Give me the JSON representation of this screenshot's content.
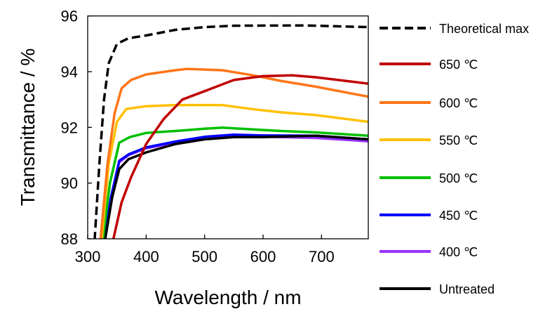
{
  "chart_data": {
    "type": "line",
    "title": "",
    "xlabel": "Wavelength / nm",
    "ylabel": "Transmittance / %",
    "xlim": [
      300,
      780
    ],
    "ylim": [
      88,
      96
    ],
    "xticks": [
      300,
      400,
      500,
      600,
      700
    ],
    "yticks": [
      88,
      90,
      92,
      94,
      96
    ],
    "grid": false,
    "legend_position": "right",
    "series": [
      {
        "name": "Theoretical max",
        "color": "#000000",
        "dashed": true,
        "x": [
          312,
          320,
          328,
          336,
          350,
          370,
          400,
          450,
          500,
          550,
          670,
          780
        ],
        "y": [
          88,
          90.7,
          93.0,
          94.3,
          95.0,
          95.2,
          95.3,
          95.5,
          95.6,
          95.65,
          95.66,
          95.6
        ]
      },
      {
        "name": "650 ℃",
        "color": "#c00000",
        "x": [
          344,
          358,
          374,
          400,
          430,
          462,
          500,
          550,
          600,
          650,
          690,
          780
        ],
        "y": [
          88,
          89.3,
          90.2,
          91.4,
          92.3,
          93.0,
          93.3,
          93.7,
          93.84,
          93.87,
          93.8,
          93.57
        ]
      },
      {
        "name": "600 ℃",
        "color": "#ff7518",
        "x": [
          322,
          334,
          346,
          358,
          374,
          400,
          450,
          470,
          530,
          580,
          630,
          690,
          780
        ],
        "y": [
          88,
          90.7,
          92.5,
          93.4,
          93.7,
          93.9,
          94.05,
          94.1,
          94.05,
          93.88,
          93.67,
          93.46,
          93.1
        ]
      },
      {
        "name": "550 ℃",
        "color": "#ffc000",
        "x": [
          324,
          336,
          350,
          366,
          400,
          450,
          500,
          530,
          580,
          630,
          690,
          780
        ],
        "y": [
          88,
          90.7,
          92.2,
          92.66,
          92.76,
          92.8,
          92.8,
          92.8,
          92.66,
          92.54,
          92.44,
          92.2
        ]
      },
      {
        "name": "500 ℃",
        "color": "#00c000",
        "x": [
          326,
          338,
          354,
          372,
          400,
          450,
          500,
          530,
          580,
          630,
          690,
          780
        ],
        "y": [
          88,
          90.0,
          91.45,
          91.65,
          91.8,
          91.87,
          91.95,
          91.99,
          91.93,
          91.87,
          91.82,
          91.7
        ]
      },
      {
        "name": "450 ℃",
        "color": "#0000ff",
        "x": [
          328,
          340,
          354,
          370,
          400,
          450,
          500,
          550,
          600,
          690,
          780
        ],
        "y": [
          88,
          89.5,
          90.8,
          91.03,
          91.28,
          91.49,
          91.66,
          91.74,
          91.71,
          91.7,
          91.57
        ]
      },
      {
        "name": "400 ℃",
        "color": "#9933ff",
        "x": [
          328,
          340,
          354,
          370,
          400,
          450,
          500,
          550,
          600,
          690,
          780
        ],
        "y": [
          88,
          89.5,
          90.75,
          91.0,
          91.25,
          91.45,
          91.62,
          91.68,
          91.66,
          91.62,
          91.5
        ]
      },
      {
        "name": "Untreated",
        "color": "#000000",
        "x": [
          330,
          342,
          354,
          370,
          400,
          450,
          500,
          550,
          600,
          690,
          780
        ],
        "y": [
          88,
          89.5,
          90.5,
          90.86,
          91.1,
          91.4,
          91.57,
          91.65,
          91.65,
          91.7,
          91.57
        ]
      }
    ]
  }
}
